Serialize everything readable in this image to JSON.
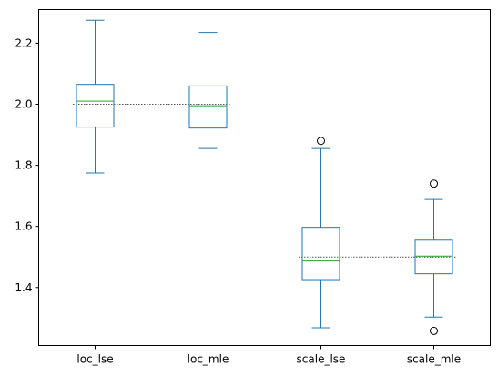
{
  "chart_data": {
    "type": "box",
    "title": "",
    "xlabel": "",
    "ylabel": "",
    "ylim": [
      1.21,
      2.31
    ],
    "yticks": [
      1.4,
      1.6,
      1.8,
      2.0,
      2.2
    ],
    "ytick_labels": [
      "1.4",
      "1.6",
      "1.8",
      "2.0",
      "2.2"
    ],
    "grid": false,
    "legend": "none",
    "colors": {
      "box": "#1f77b4",
      "median": "#2ca02c",
      "reference": "#555555",
      "outlier": "#000000"
    },
    "categories": [
      "loc_lse",
      "loc_mle",
      "scale_lse",
      "scale_mle"
    ],
    "boxes": [
      {
        "name": "loc_lse",
        "whislo": 1.775,
        "q1": 1.925,
        "med": 2.01,
        "q3": 2.065,
        "whishi": 2.275,
        "fliers": []
      },
      {
        "name": "loc_mle",
        "whislo": 1.855,
        "q1": 1.922,
        "med": 1.995,
        "q3": 2.06,
        "whishi": 2.235,
        "fliers": []
      },
      {
        "name": "scale_lse",
        "whislo": 1.268,
        "q1": 1.423,
        "med": 1.487,
        "q3": 1.597,
        "whishi": 1.855,
        "fliers": [
          1.88
        ]
      },
      {
        "name": "scale_mle",
        "whislo": 1.303,
        "q1": 1.445,
        "med": 1.503,
        "q3": 1.555,
        "whishi": 1.688,
        "fliers": [
          1.74,
          1.258
        ]
      }
    ],
    "reference_lines": [
      {
        "y": 2.0,
        "x_from": "loc_lse",
        "x_to": "loc_mle"
      },
      {
        "y": 1.5,
        "x_from": "scale_lse",
        "x_to": "scale_mle"
      }
    ]
  }
}
